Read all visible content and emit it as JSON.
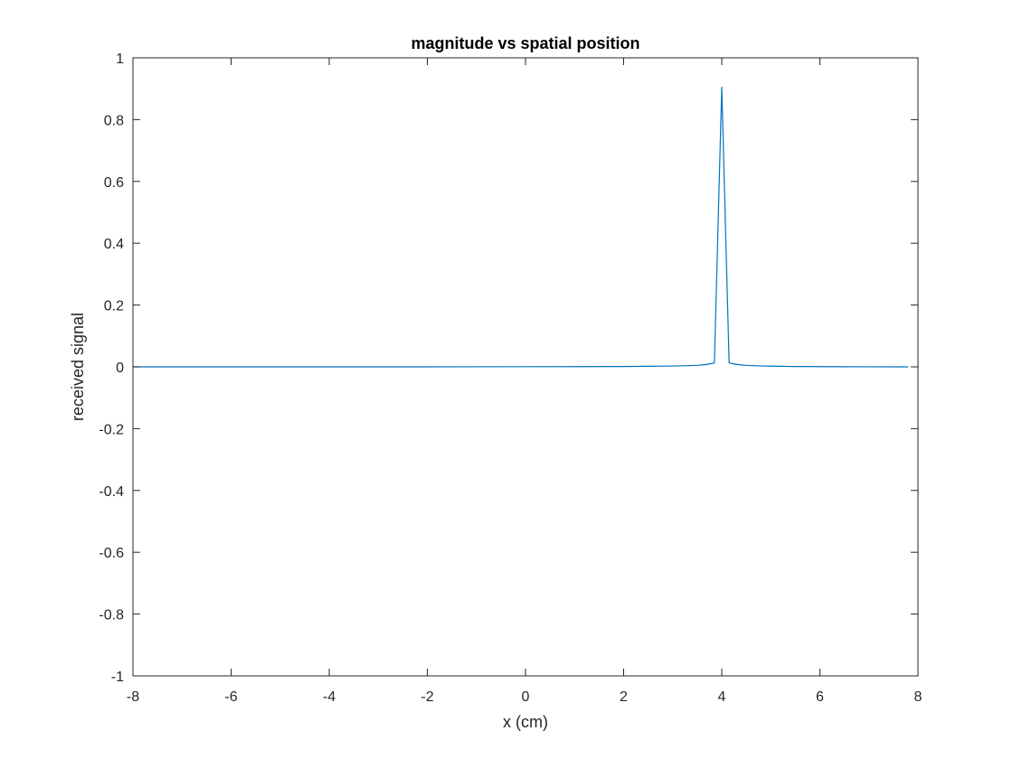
{
  "chart_data": {
    "type": "line",
    "title": "magnitude vs spatial position",
    "xlabel": "x (cm)",
    "ylabel": "received signal",
    "xlim": [
      -8,
      8
    ],
    "ylim": [
      -1,
      1
    ],
    "xticks": [
      -8,
      -6,
      -4,
      -2,
      0,
      2,
      4,
      6,
      8
    ],
    "xtick_labels": [
      "-8",
      "-6",
      "-4",
      "-2",
      "0",
      "2",
      "4",
      "6",
      "8"
    ],
    "yticks": [
      -1,
      -0.8,
      -0.6,
      -0.4,
      -0.2,
      0,
      0.2,
      0.4,
      0.6,
      0.8,
      1
    ],
    "ytick_labels": [
      "-1",
      "-0.8",
      "-0.6",
      "-0.4",
      "-0.2",
      "0",
      "0.2",
      "0.4",
      "0.6",
      "0.8",
      "1"
    ],
    "grid": false,
    "box": true,
    "series": [
      {
        "color": "#0072bd",
        "x": [
          -8,
          -6,
          -4,
          -2,
          0,
          1,
          2,
          2.5,
          3,
          3.3,
          3.5,
          3.6,
          3.7,
          3.8,
          3.85,
          4.0,
          4.15,
          4.2,
          4.3,
          4.4,
          4.5,
          4.7,
          5,
          5.5,
          6,
          6.5,
          7,
          7.5,
          7.8
        ],
        "y": [
          0,
          0,
          0,
          0,
          0.0005,
          0.0008,
          0.0012,
          0.0018,
          0.0028,
          0.0038,
          0.005,
          0.0062,
          0.008,
          0.011,
          0.013,
          0.905,
          0.013,
          0.011,
          0.008,
          0.0062,
          0.005,
          0.0035,
          0.0022,
          0.0012,
          0.0007,
          0.0004,
          0.0002,
          0.0001,
          0
        ]
      }
    ]
  }
}
